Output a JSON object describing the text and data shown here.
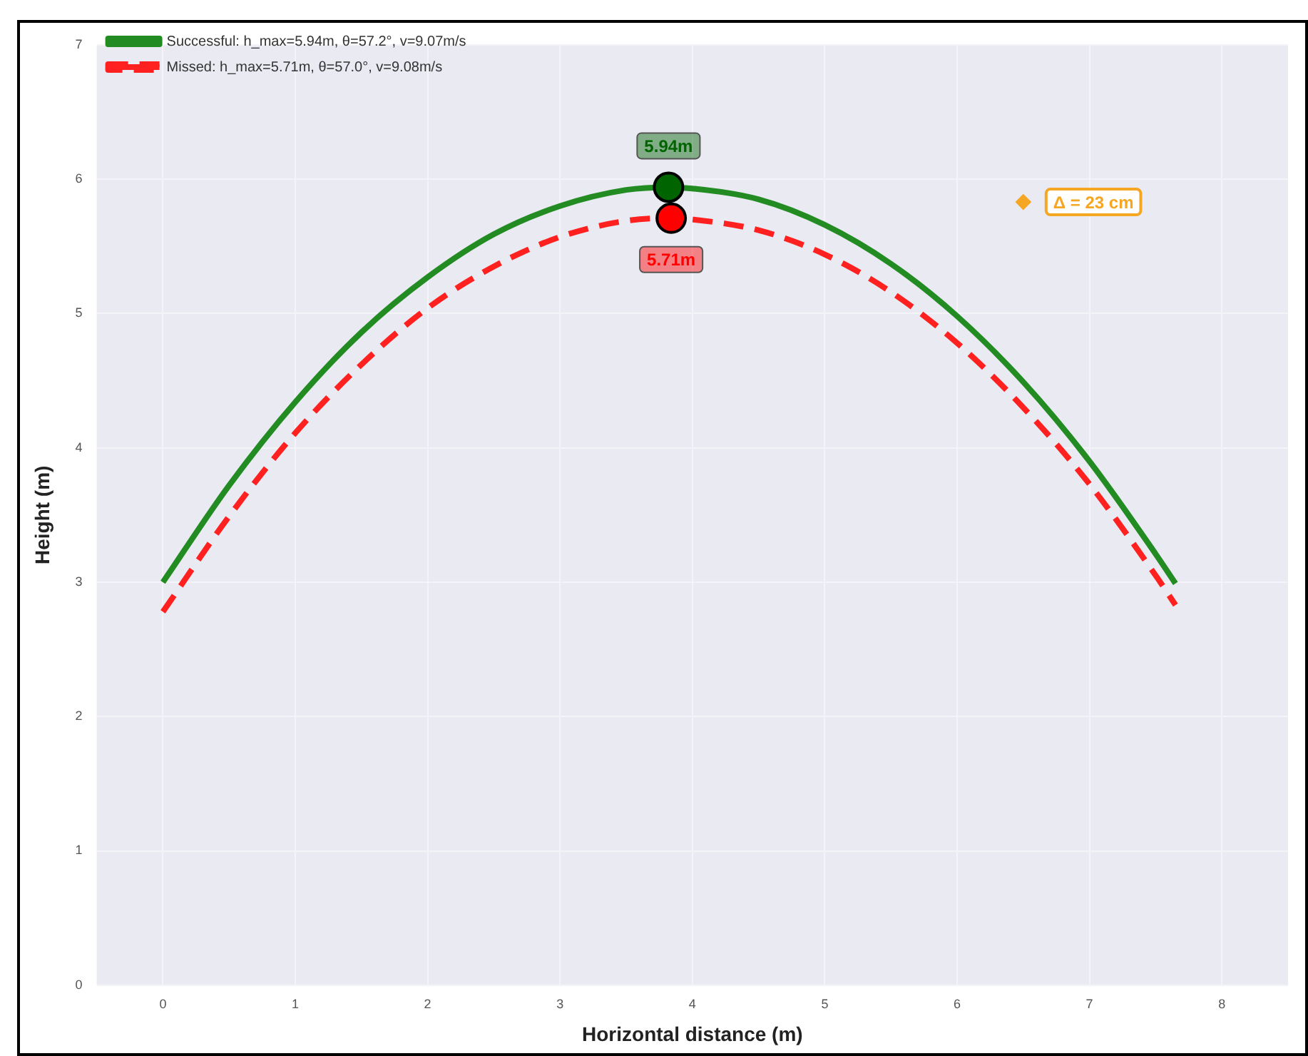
{
  "chart_data": {
    "type": "line",
    "xlabel": "Horizontal distance (m)",
    "ylabel": "Height (m)",
    "xlim": [
      -0.5,
      8.5
    ],
    "xticks": [
      0,
      1,
      2,
      3,
      4,
      5,
      6,
      7,
      8
    ],
    "ylim": [
      0,
      7
    ],
    "yticks": [
      0,
      1,
      2,
      3,
      4,
      5,
      6,
      7
    ],
    "grid": true,
    "legend": "top left",
    "series": [
      {
        "name": "Successful: h_max=5.94m, θ=57.2°, v=9.07m/s",
        "type": "line",
        "color": "#228b22",
        "line_style": "solid",
        "marker": "none",
        "x": [
          0,
          0.5,
          1,
          1.5,
          2,
          2.5,
          3,
          3.5,
          3.82,
          4,
          4.5,
          5,
          5.5,
          6,
          6.5,
          7,
          7.5,
          7.65
        ],
        "values": [
          3.0,
          3.72,
          4.34,
          4.86,
          5.27,
          5.59,
          5.8,
          5.92,
          5.94,
          5.93,
          5.85,
          5.66,
          5.37,
          4.98,
          4.49,
          3.9,
          3.21,
          2.99
        ]
      },
      {
        "name": "Missed: h_max=5.71m, θ=57.0°, v=9.08m/s",
        "type": "line",
        "color": "#ff2020",
        "line_style": "dashed",
        "marker": "none",
        "x": [
          0,
          0.5,
          1,
          1.5,
          2,
          2.5,
          3,
          3.5,
          3.84,
          4,
          4.5,
          5,
          5.5,
          6,
          6.5,
          7,
          7.5,
          7.65
        ],
        "values": [
          2.78,
          3.49,
          4.11,
          4.62,
          5.04,
          5.35,
          5.57,
          5.69,
          5.71,
          5.7,
          5.62,
          5.44,
          5.16,
          4.78,
          4.3,
          3.73,
          3.05,
          2.83
        ]
      },
      {
        "type": "scatter",
        "color": "#006400",
        "marker": "circle",
        "x": [
          3.82
        ],
        "values": [
          5.94
        ]
      },
      {
        "type": "scatter",
        "color": "#ff0000",
        "marker": "circle",
        "x": [
          3.84
        ],
        "values": [
          5.71
        ]
      },
      {
        "type": "scatter",
        "color": "#f5a623",
        "marker": "diamond",
        "x": [
          6.5
        ],
        "values": [
          5.83
        ]
      }
    ],
    "annotations": [
      {
        "text": "5.94m",
        "x": 3.82,
        "y": 5.94
      },
      {
        "text": "5.71m",
        "x": 3.84,
        "y": 5.71
      },
      {
        "text": "Δ = 23 cm",
        "x": 6.5,
        "y": 5.83
      }
    ]
  }
}
